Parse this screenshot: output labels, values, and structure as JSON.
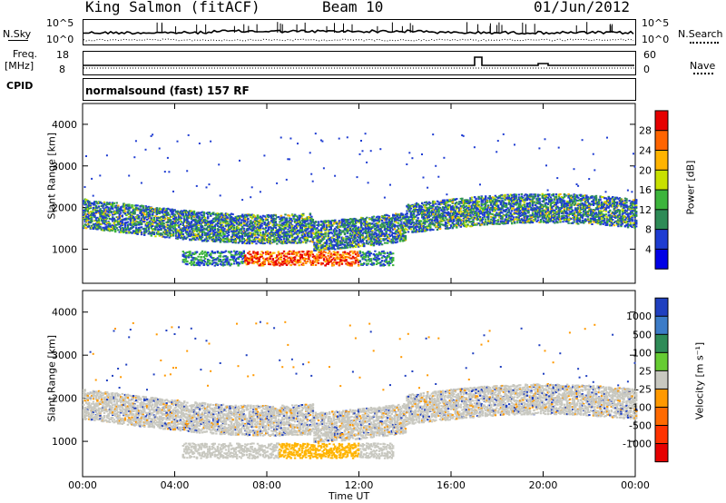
{
  "header": {
    "station": "King Salmon (fitACF)",
    "beam": "Beam 10",
    "date": "01/Jun/2012"
  },
  "top_panels": {
    "nsky_label": "N.Sky",
    "nsearch_label": "N.Search",
    "nsky_ticks": [
      "10^5",
      "10^0"
    ],
    "nsearch_ticks": [
      "10^5",
      "10^0"
    ],
    "freq_label_1": "Freq.",
    "freq_label_2": "[MHz]",
    "freq_ticks": [
      "18",
      "8"
    ],
    "nave_label": "Nave",
    "nave_ticks": [
      "60",
      "0"
    ],
    "cpid_label": "CPID",
    "cpid_text": "normalsound (fast) 157 RF"
  },
  "chart_data": [
    {
      "type": "heatmap",
      "name": "power",
      "ylabel": "Slant Range [km]",
      "y_ticks": [
        "1000",
        "2000",
        "3000",
        "4000"
      ],
      "ylim": [
        180,
        4500
      ],
      "x_ticks": [
        "00:00",
        "04:00",
        "08:00",
        "12:00",
        "16:00",
        "20:00",
        "00:00"
      ],
      "xlim_hours": [
        0,
        24
      ],
      "colorbar_label": "Power [dB]",
      "colorbar_ticks": [
        "28",
        "24",
        "20",
        "16",
        "12",
        "8",
        "4"
      ],
      "colorbar_colors": [
        "#e60000",
        "#ff6400",
        "#ffb400",
        "#c8e000",
        "#3cb43c",
        "#2e8b57",
        "#1e3cd2",
        "#0000e6"
      ]
    },
    {
      "type": "heatmap",
      "name": "velocity",
      "ylabel": "Slant Range [km]",
      "y_ticks": [
        "1000",
        "2000",
        "3000",
        "4000"
      ],
      "ylim": [
        180,
        4500
      ],
      "x_ticks": [
        "00:00",
        "04:00",
        "08:00",
        "12:00",
        "16:00",
        "20:00",
        "00:00"
      ],
      "xlim_hours": [
        0,
        24
      ],
      "xlabel": "Time UT",
      "colorbar_label": "Velocity [m s⁻¹]",
      "colorbar_ticks": [
        "1000",
        "500",
        "100",
        "25",
        "-25",
        "-100",
        "-500",
        "-1000"
      ],
      "colorbar_colors": [
        "#2040c0",
        "#3c7cc8",
        "#2e8b57",
        "#66cc33",
        "#c8c8c0",
        "#ff9900",
        "#ff6a00",
        "#ff3300",
        "#e60000"
      ]
    }
  ]
}
